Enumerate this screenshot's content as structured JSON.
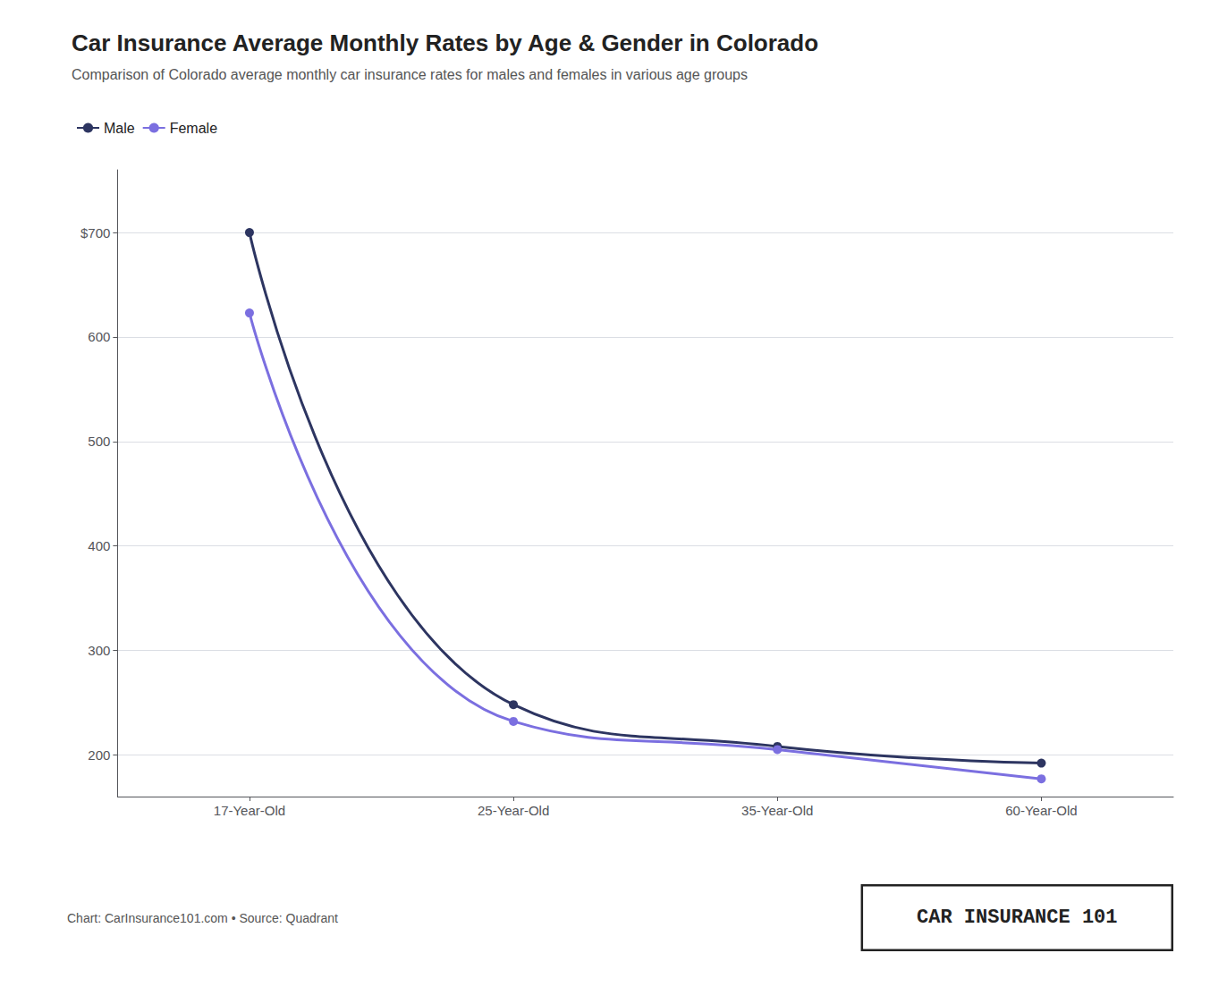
{
  "chart_data": {
    "type": "line",
    "title": "Car Insurance Average Monthly Rates by Age & Gender in Colorado",
    "subtitle": "Comparison of Colorado average monthly car insurance rates for males and females in various age groups",
    "categories": [
      "17-Year-Old",
      "25-Year-Old",
      "35-Year-Old",
      "60-Year-Old"
    ],
    "series": [
      {
        "name": "Male",
        "color": "#2d3561",
        "values": [
          700,
          248,
          208,
          192
        ]
      },
      {
        "name": "Female",
        "color": "#7b6fe0",
        "values": [
          623,
          232,
          205,
          177
        ]
      }
    ],
    "ylim": [
      160,
      760
    ],
    "yticks": [
      200,
      300,
      400,
      500,
      600,
      {
        "value": 700,
        "label": "$700"
      }
    ],
    "grid": true,
    "legend": "upper left",
    "marker": "circle",
    "annotations": [
      "Chart: CarInsurance101.com • Source: Quadrant",
      "CAR INSURANCE 101"
    ]
  }
}
